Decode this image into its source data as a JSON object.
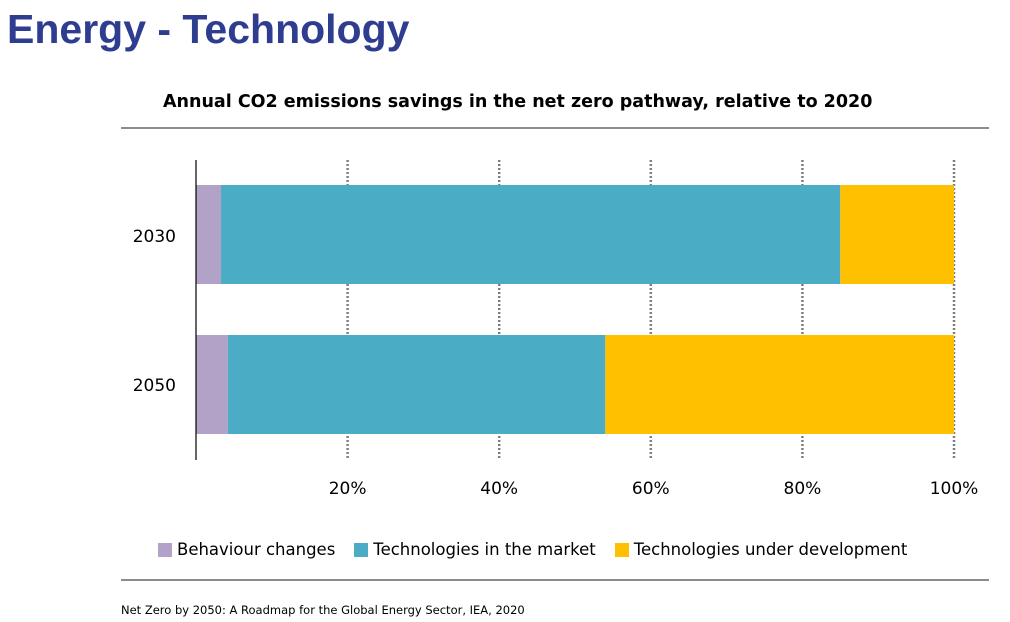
{
  "slide": {
    "title": "Energy - Technology",
    "source": "Net Zero by 2050: A Roadmap for the Global Energy Sector, IEA, 2020"
  },
  "colors": {
    "title": "#2e3d8f",
    "behaviour": "#b3a2c7",
    "market": "#4bacc6",
    "development": "#ffc000"
  },
  "chart_data": {
    "type": "bar",
    "orientation": "horizontal",
    "stacked": true,
    "title": "Annual CO2 emissions savings in the net zero pathway, relative to 2020",
    "categories": [
      "2030",
      "2050"
    ],
    "series": [
      {
        "name": "Behaviour changes",
        "values": [
          3.3,
          4.2
        ],
        "color": "#b3a2c7"
      },
      {
        "name": "Technologies in the market",
        "values": [
          81.7,
          49.8
        ],
        "color": "#4bacc6"
      },
      {
        "name": "Technologies under development",
        "values": [
          15.0,
          46.0
        ],
        "color": "#ffc000"
      }
    ],
    "xlim": [
      0,
      100
    ],
    "xticks": [
      20,
      40,
      60,
      80,
      100
    ],
    "xtick_labels": [
      "20%",
      "40%",
      "60%",
      "80%",
      "100%"
    ],
    "grid": "vertical-dotted",
    "legend": "bottom"
  }
}
